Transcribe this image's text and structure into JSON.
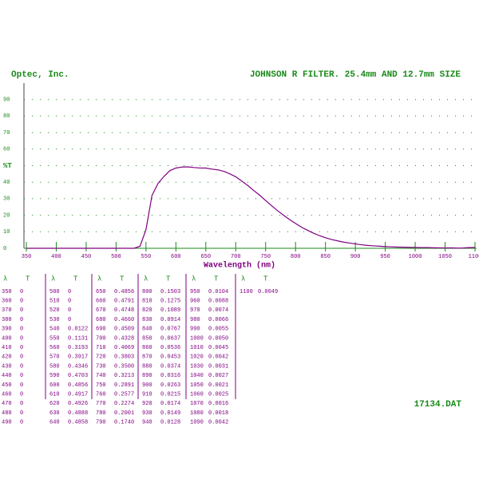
{
  "header": {
    "company": "Optec, Inc.",
    "title": "JOHNSON R FILTER. 25.4mm AND 12.7mm SIZE"
  },
  "chart_data": {
    "type": "line",
    "xlabel": "Wavelength (nm)",
    "x": [
      350,
      360,
      370,
      380,
      390,
      400,
      410,
      420,
      430,
      440,
      450,
      460,
      470,
      480,
      490,
      500,
      510,
      520,
      530,
      540,
      550,
      560,
      570,
      580,
      590,
      600,
      610,
      620,
      630,
      640,
      650,
      660,
      670,
      680,
      690,
      700,
      710,
      720,
      730,
      740,
      750,
      760,
      770,
      780,
      790,
      800,
      810,
      820,
      830,
      840,
      850,
      860,
      870,
      880,
      890,
      900,
      910,
      920,
      930,
      940,
      950,
      960,
      970,
      980,
      990,
      1000,
      1010,
      1020,
      1030,
      1040,
      1050,
      1060,
      1070,
      1080,
      1090,
      1100
    ],
    "series": [
      {
        "color": "#800080",
        "values": [
          0,
          0,
          0,
          0,
          0,
          0,
          0,
          0,
          0,
          0,
          0,
          0,
          0,
          0,
          0,
          0,
          0,
          0,
          0,
          1.22,
          11.31,
          31.93,
          39.17,
          43.46,
          47.03,
          48.56,
          49.17,
          49.26,
          48.88,
          48.58,
          48.56,
          47.91,
          47.48,
          46.6,
          45.09,
          43.28,
          40.69,
          38.03,
          35,
          32.13,
          28.91,
          25.77,
          22.74,
          20.01,
          17.4,
          15.03,
          12.75,
          10.89,
          9.14,
          7.67,
          6.37,
          5.36,
          4.53,
          3.74,
          3.16,
          2.63,
          2.15,
          1.74,
          1.49,
          1.28,
          1.04,
          0.88,
          0.74,
          0.66,
          0.55,
          0.5,
          0.45,
          0.42,
          0.31,
          0.27,
          0.21,
          0.25,
          0.16,
          0.18,
          0.42,
          0.49
        ]
      }
    ],
    "xlim": [
      350,
      1100
    ],
    "xticks": [
      350,
      400,
      450,
      500,
      550,
      600,
      650,
      700,
      750,
      800,
      850,
      900,
      950,
      1000,
      1050,
      1100
    ],
    "ylim": [
      0,
      100
    ],
    "yticks": [
      0,
      10,
      20,
      30,
      40,
      {
        "value": 50,
        "label": "%T"
      },
      60,
      70,
      80,
      90
    ],
    "grid": true
  },
  "table": {
    "columns": [
      {
        "header": [
          "λ",
          "T"
        ],
        "rows": [
          [
            "350",
            "0"
          ],
          [
            "360",
            "0"
          ],
          [
            "370",
            "0"
          ],
          [
            "380",
            "0"
          ],
          [
            "390",
            "0"
          ],
          [
            "400",
            "0"
          ],
          [
            "410",
            "0"
          ],
          [
            "420",
            "0"
          ],
          [
            "430",
            "0"
          ],
          [
            "440",
            "0"
          ],
          [
            "450",
            "0"
          ],
          [
            "460",
            "0"
          ],
          [
            "470",
            "0"
          ],
          [
            "480",
            "0"
          ],
          [
            "490",
            "0"
          ]
        ]
      },
      {
        "header": [
          "λ",
          "T"
        ],
        "rows": [
          [
            "500",
            "0"
          ],
          [
            "510",
            "0"
          ],
          [
            "520",
            "0"
          ],
          [
            "530",
            "0"
          ],
          [
            "540",
            "0.0122"
          ],
          [
            "550",
            "0.1131"
          ],
          [
            "560",
            "0.3193"
          ],
          [
            "570",
            "0.3917"
          ],
          [
            "580",
            "0.4346"
          ],
          [
            "590",
            "0.4703"
          ],
          [
            "600",
            "0.4856"
          ],
          [
            "610",
            "0.4917"
          ],
          [
            "620",
            "0.4926"
          ],
          [
            "630",
            "0.4888"
          ],
          [
            "640",
            "0.4858"
          ]
        ]
      },
      {
        "header": [
          "λ",
          "T"
        ],
        "rows": [
          [
            "650",
            "0.4856"
          ],
          [
            "660",
            "0.4791"
          ],
          [
            "670",
            "0.4748"
          ],
          [
            "680",
            "0.4660"
          ],
          [
            "690",
            "0.4509"
          ],
          [
            "700",
            "0.4328"
          ],
          [
            "710",
            "0.4069"
          ],
          [
            "720",
            "0.3803"
          ],
          [
            "730",
            "0.3500"
          ],
          [
            "740",
            "0.3213"
          ],
          [
            "750",
            "0.2891"
          ],
          [
            "760",
            "0.2577"
          ],
          [
            "770",
            "0.2274"
          ],
          [
            "780",
            "0.2001"
          ],
          [
            "790",
            "0.1740"
          ]
        ]
      },
      {
        "header": [
          "λ",
          "T"
        ],
        "rows": [
          [
            "800",
            "0.1503"
          ],
          [
            "810",
            "0.1275"
          ],
          [
            "820",
            "0.1089"
          ],
          [
            "830",
            "0.0914"
          ],
          [
            "840",
            "0.0767"
          ],
          [
            "850",
            "0.0637"
          ],
          [
            "860",
            "0.0536"
          ],
          [
            "870",
            "0.0453"
          ],
          [
            "880",
            "0.0374"
          ],
          [
            "890",
            "0.0316"
          ],
          [
            "900",
            "0.0263"
          ],
          [
            "910",
            "0.0215"
          ],
          [
            "920",
            "0.0174"
          ],
          [
            "930",
            "0.0149"
          ],
          [
            "940",
            "0.0128"
          ]
        ]
      },
      {
        "header": [
          "λ",
          "T"
        ],
        "rows": [
          [
            "950",
            "0.0104"
          ],
          [
            "960",
            "0.0088"
          ],
          [
            "970",
            "0.0074"
          ],
          [
            "980",
            "0.0066"
          ],
          [
            "990",
            "0.0055"
          ],
          [
            "1000",
            "0.0050"
          ],
          [
            "1010",
            "0.0045"
          ],
          [
            "1020",
            "0.0042"
          ],
          [
            "1030",
            "0.0031"
          ],
          [
            "1040",
            "0.0027"
          ],
          [
            "1050",
            "0.0021"
          ],
          [
            "1060",
            "0.0025"
          ],
          [
            "1070",
            "0.0016"
          ],
          [
            "1080",
            "0.0018"
          ],
          [
            "1090",
            "0.0042"
          ]
        ]
      },
      {
        "header": [
          "λ",
          "T"
        ],
        "rows": [
          [
            "1100",
            "0.0049"
          ]
        ]
      }
    ]
  },
  "footer": "17134.DAT"
}
